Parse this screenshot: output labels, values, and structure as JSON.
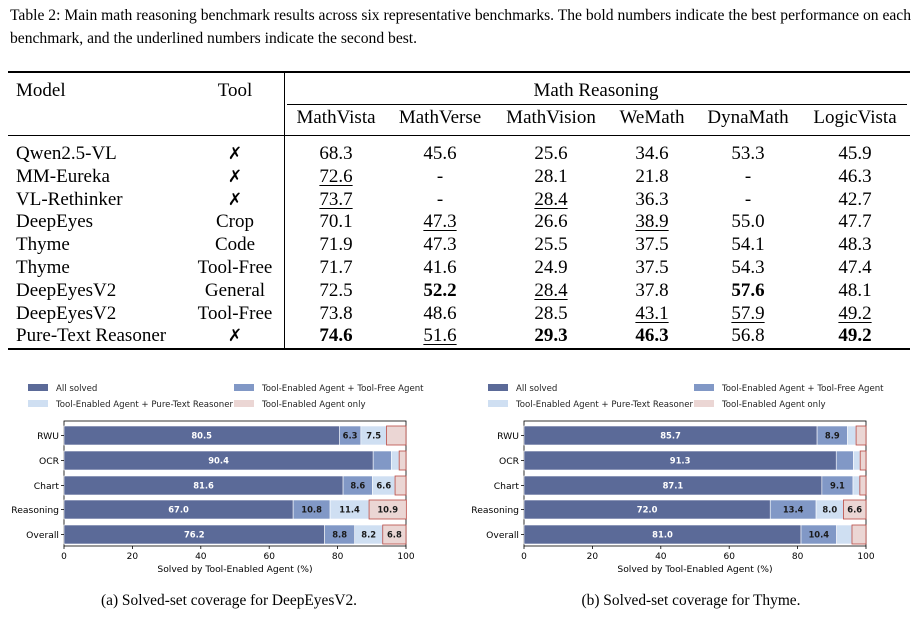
{
  "caption": "Table 2: Main math reasoning benchmark results across six representative benchmarks. The bold numbers indicate the best performance on each benchmark, and the underlined numbers indicate the second best.",
  "table": {
    "col_model": "Model",
    "col_tool": "Tool",
    "group_header": "Math Reasoning",
    "benchmarks": [
      "MathVista",
      "MathVerse",
      "MathVision",
      "WeMath",
      "DynaMath",
      "LogicVista"
    ],
    "rows": [
      {
        "model": "Qwen2.5-VL",
        "tool": "✗",
        "values": [
          "68.3",
          "45.6",
          "25.6",
          "34.6",
          "53.3",
          "45.9"
        ]
      },
      {
        "model": "MM-Eureka",
        "tool": "✗",
        "values": [
          "72.6",
          "-",
          "28.1",
          "21.8",
          "-",
          "46.3"
        ]
      },
      {
        "model": "VL-Rethinker",
        "tool": "✗",
        "values": [
          "73.7",
          "-",
          "28.4",
          "36.3",
          "-",
          "42.7"
        ]
      },
      {
        "model": "DeepEyes",
        "tool": "Crop",
        "values": [
          "70.1",
          "47.3",
          "26.6",
          "38.9",
          "55.0",
          "47.7"
        ]
      },
      {
        "model": "Thyme",
        "tool": "Code",
        "values": [
          "71.9",
          "47.3",
          "25.5",
          "37.5",
          "54.1",
          "48.3"
        ]
      },
      {
        "model": "Thyme",
        "tool": "Tool-Free",
        "values": [
          "71.7",
          "41.6",
          "24.9",
          "37.5",
          "54.3",
          "47.4"
        ]
      },
      {
        "model": "DeepEyesV2",
        "tool": "General",
        "values": [
          "72.5",
          "52.2",
          "28.4",
          "37.8",
          "57.6",
          "48.1"
        ]
      },
      {
        "model": "DeepEyesV2",
        "tool": "Tool-Free",
        "values": [
          "73.8",
          "48.6",
          "28.5",
          "43.1",
          "57.9",
          "49.2"
        ]
      },
      {
        "model": "Pure-Text Reasoner",
        "tool": "✗",
        "values": [
          "74.6",
          "51.6",
          "29.3",
          "46.3",
          "56.8",
          "49.2"
        ]
      }
    ]
  },
  "chart_data": [
    {
      "type": "bar",
      "orientation": "horizontal-stacked",
      "caption": "(a) Solved-set coverage for DeepEyesV2.",
      "xlabel": "Solved by Tool-Enabled Agent (%)",
      "xlim": [
        0,
        100
      ],
      "xticks": [
        "0",
        "20",
        "40",
        "60",
        "80",
        "100"
      ],
      "legend_position": "top",
      "categories": [
        "RWU",
        "OCR",
        "Chart",
        "Reasoning",
        "Overall"
      ],
      "series": [
        {
          "name": "All solved",
          "color": "#5b6a98",
          "values": [
            80.5,
            90.4,
            81.6,
            67.0,
            76.2
          ],
          "labels": [
            "80.5",
            "90.4",
            "81.6",
            "67.0",
            "76.2"
          ]
        },
        {
          "name": "Tool-Enabled Agent + Tool-Free Agent",
          "color": "#8198c6",
          "values": [
            6.3,
            5.3,
            8.6,
            10.8,
            8.8
          ],
          "labels": [
            "6.3",
            "",
            "8.6",
            "10.8",
            "8.8"
          ]
        },
        {
          "name": "Tool-Enabled Agent + Pure-Text Reasoner",
          "color": "#cfdff2",
          "values": [
            7.5,
            2.3,
            6.6,
            11.4,
            8.2
          ],
          "labels": [
            "7.5",
            "",
            "6.6",
            "11.4",
            "8.2"
          ]
        },
        {
          "name": "Tool-Enabled Agent only",
          "color": "#ebd6d4",
          "values": [
            5.7,
            2.0,
            3.2,
            10.9,
            6.8
          ],
          "labels": [
            "",
            "",
            "",
            "10.9",
            "6.8"
          ]
        }
      ]
    },
    {
      "type": "bar",
      "orientation": "horizontal-stacked",
      "caption": "(b) Solved-set coverage for Thyme.",
      "xlabel": "Solved by Tool-Enabled Agent (%)",
      "xlim": [
        0,
        100
      ],
      "xticks": [
        "0",
        "20",
        "40",
        "60",
        "80",
        "100"
      ],
      "legend_position": "top",
      "categories": [
        "RWU",
        "OCR",
        "Chart",
        "Reasoning",
        "Overall"
      ],
      "series": [
        {
          "name": "All solved",
          "color": "#5b6a98",
          "values": [
            85.7,
            91.3,
            87.1,
            72.0,
            81.0
          ],
          "labels": [
            "85.7",
            "91.3",
            "87.1",
            "72.0",
            "81.0"
          ]
        },
        {
          "name": "Tool-Enabled Agent + Tool-Free Agent",
          "color": "#8198c6",
          "values": [
            8.9,
            5.0,
            9.1,
            13.4,
            10.4
          ],
          "labels": [
            "8.9",
            "",
            "9.1",
            "13.4",
            "10.4"
          ]
        },
        {
          "name": "Tool-Enabled Agent + Pure-Text Reasoner",
          "color": "#cfdff2",
          "values": [
            2.5,
            2.0,
            2.0,
            8.0,
            4.5
          ],
          "labels": [
            "",
            "",
            "",
            "8.0",
            ""
          ]
        },
        {
          "name": "Tool-Enabled Agent only",
          "color": "#ebd6d4",
          "values": [
            2.9,
            1.7,
            1.8,
            6.6,
            4.1
          ],
          "labels": [
            "",
            "",
            "",
            "6.6",
            ""
          ]
        }
      ]
    }
  ]
}
